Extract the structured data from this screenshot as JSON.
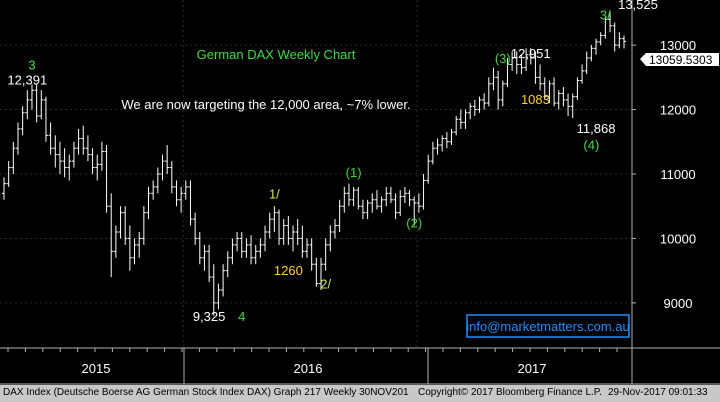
{
  "chart_data": {
    "type": "ohlc",
    "title": "German DAX Weekly Chart",
    "subtitle": "We are now targeting the 12,000 area, ~7% lower.",
    "ylim": [
      8300,
      13700
    ],
    "y_ticks": [
      9000,
      10000,
      11000,
      12000,
      13000
    ],
    "x_labels": [
      "2015",
      "2016",
      "2017"
    ],
    "grid": true,
    "last_price_label": "13059.5303",
    "annotations": [
      {
        "text": "3",
        "color": "#3ddc3d",
        "x": 6,
        "y": 12620
      },
      {
        "text": "12,391",
        "color": "#ffffff",
        "x": 5,
        "y": 12391
      },
      {
        "text": "1/",
        "color": "#d4e84a",
        "x": 58,
        "y": 10620
      },
      {
        "text": "(1)",
        "color": "#3ddc3d",
        "x": 75,
        "y": 10950
      },
      {
        "text": "(2)",
        "color": "#3ddc3d",
        "x": 88,
        "y": 10170
      },
      {
        "text": "1260",
        "color": "#ffd21f",
        "x": 61,
        "y": 9430
      },
      {
        "text": "2/",
        "color": "#d4e84a",
        "x": 69,
        "y": 9220
      },
      {
        "text": "9,325",
        "color": "#ffffff",
        "x": 44,
        "y": 8720
      },
      {
        "text": "4",
        "color": "#3ddc3d",
        "x": 51,
        "y": 8720
      },
      {
        "text": "(3)",
        "color": "#3ddc3d",
        "x": 107,
        "y": 12720
      },
      {
        "text": "12,951",
        "color": "#ffffff",
        "x": 113,
        "y": 12800
      },
      {
        "text": "1083",
        "color": "#ffd21f",
        "x": 114,
        "y": 12090
      },
      {
        "text": "11,868",
        "color": "#ffffff",
        "x": 127,
        "y": 11640
      },
      {
        "text": "(4)",
        "color": "#3ddc3d",
        "x": 126,
        "y": 11380
      },
      {
        "text": "3/",
        "color": "#3ddc3d",
        "x": 129,
        "y": 13400
      },
      {
        "text": "13,525",
        "color": "#ffffff",
        "x": 136,
        "y": 13560
      }
    ],
    "series": [
      {
        "values": [
          {
            "o": 10700,
            "h": 10950,
            "l": 10600,
            "c": 10850
          },
          {
            "o": 10850,
            "h": 11200,
            "l": 10800,
            "c": 11100
          },
          {
            "o": 11100,
            "h": 11500,
            "l": 11000,
            "c": 11400
          },
          {
            "o": 11400,
            "h": 11800,
            "l": 11300,
            "c": 11700
          },
          {
            "o": 11700,
            "h": 12050,
            "l": 11600,
            "c": 11950
          },
          {
            "o": 11950,
            "h": 12300,
            "l": 11850,
            "c": 12150
          },
          {
            "o": 12150,
            "h": 12391,
            "l": 12000,
            "c": 12300
          },
          {
            "o": 12300,
            "h": 12391,
            "l": 11800,
            "c": 11900
          },
          {
            "o": 11900,
            "h": 12300,
            "l": 11850,
            "c": 12150
          },
          {
            "o": 12150,
            "h": 12200,
            "l": 11500,
            "c": 11600
          },
          {
            "o": 11600,
            "h": 11800,
            "l": 11300,
            "c": 11400
          },
          {
            "o": 11400,
            "h": 11600,
            "l": 11100,
            "c": 11300
          },
          {
            "o": 11300,
            "h": 11500,
            "l": 11000,
            "c": 11200
          },
          {
            "o": 11200,
            "h": 11400,
            "l": 10950,
            "c": 11100
          },
          {
            "o": 11100,
            "h": 11300,
            "l": 10900,
            "c": 11200
          },
          {
            "o": 11200,
            "h": 11500,
            "l": 11100,
            "c": 11400
          },
          {
            "o": 11400,
            "h": 11700,
            "l": 11300,
            "c": 11550
          },
          {
            "o": 11550,
            "h": 11750,
            "l": 11300,
            "c": 11400
          },
          {
            "o": 11400,
            "h": 11600,
            "l": 11200,
            "c": 11300
          },
          {
            "o": 11300,
            "h": 11400,
            "l": 11000,
            "c": 11100
          },
          {
            "o": 11100,
            "h": 11300,
            "l": 10900,
            "c": 11150
          },
          {
            "o": 11150,
            "h": 11500,
            "l": 11050,
            "c": 11350
          },
          {
            "o": 11350,
            "h": 11450,
            "l": 10400,
            "c": 10500
          },
          {
            "o": 10500,
            "h": 10700,
            "l": 9400,
            "c": 9800
          },
          {
            "o": 9800,
            "h": 10200,
            "l": 9700,
            "c": 10100
          },
          {
            "o": 10100,
            "h": 10500,
            "l": 10000,
            "c": 10400
          },
          {
            "o": 10400,
            "h": 10500,
            "l": 9900,
            "c": 10000
          },
          {
            "o": 10000,
            "h": 10200,
            "l": 9500,
            "c": 9700
          },
          {
            "o": 9700,
            "h": 10000,
            "l": 9600,
            "c": 9900
          },
          {
            "o": 9900,
            "h": 10100,
            "l": 9700,
            "c": 10000
          },
          {
            "o": 10000,
            "h": 10500,
            "l": 9900,
            "c": 10400
          },
          {
            "o": 10400,
            "h": 10800,
            "l": 10300,
            "c": 10700
          },
          {
            "o": 10700,
            "h": 10900,
            "l": 10600,
            "c": 10800
          },
          {
            "o": 10800,
            "h": 11100,
            "l": 10700,
            "c": 11000
          },
          {
            "o": 11000,
            "h": 11300,
            "l": 10900,
            "c": 11200
          },
          {
            "o": 11200,
            "h": 11450,
            "l": 11000,
            "c": 11100
          },
          {
            "o": 11100,
            "h": 11200,
            "l": 10700,
            "c": 10800
          },
          {
            "o": 10800,
            "h": 10900,
            "l": 10500,
            "c": 10600
          },
          {
            "o": 10600,
            "h": 10800,
            "l": 10400,
            "c": 10700
          },
          {
            "o": 10700,
            "h": 10900,
            "l": 10600,
            "c": 10800
          },
          {
            "o": 10800,
            "h": 10900,
            "l": 10200,
            "c": 10300
          },
          {
            "o": 10300,
            "h": 10400,
            "l": 9900,
            "c": 10000
          },
          {
            "o": 10000,
            "h": 10100,
            "l": 9600,
            "c": 9700
          },
          {
            "o": 9700,
            "h": 9900,
            "l": 9500,
            "c": 9800
          },
          {
            "o": 9800,
            "h": 9900,
            "l": 9325,
            "c": 9400
          },
          {
            "o": 9400,
            "h": 9600,
            "l": 8800,
            "c": 9000
          },
          {
            "o": 9000,
            "h": 9300,
            "l": 8900,
            "c": 9200
          },
          {
            "o": 9200,
            "h": 9600,
            "l": 9100,
            "c": 9500
          },
          {
            "o": 9500,
            "h": 9800,
            "l": 9400,
            "c": 9700
          },
          {
            "o": 9700,
            "h": 10000,
            "l": 9600,
            "c": 9900
          },
          {
            "o": 9900,
            "h": 10100,
            "l": 9800,
            "c": 10000
          },
          {
            "o": 10000,
            "h": 10100,
            "l": 9700,
            "c": 9800
          },
          {
            "o": 9800,
            "h": 10000,
            "l": 9700,
            "c": 9900
          },
          {
            "o": 9900,
            "h": 10050,
            "l": 9600,
            "c": 9700
          },
          {
            "o": 9700,
            "h": 9900,
            "l": 9600,
            "c": 9800
          },
          {
            "o": 9800,
            "h": 10000,
            "l": 9700,
            "c": 9900
          },
          {
            "o": 9900,
            "h": 10200,
            "l": 9800,
            "c": 10100
          },
          {
            "o": 10100,
            "h": 10400,
            "l": 10000,
            "c": 10300
          },
          {
            "o": 10300,
            "h": 10500,
            "l": 10100,
            "c": 10400
          },
          {
            "o": 10400,
            "h": 10450,
            "l": 9900,
            "c": 10000
          },
          {
            "o": 10000,
            "h": 10300,
            "l": 9900,
            "c": 10200
          },
          {
            "o": 10200,
            "h": 10350,
            "l": 9900,
            "c": 10000
          },
          {
            "o": 10000,
            "h": 10200,
            "l": 9800,
            "c": 10100
          },
          {
            "o": 10100,
            "h": 10300,
            "l": 9900,
            "c": 10000
          },
          {
            "o": 10000,
            "h": 10200,
            "l": 9700,
            "c": 9800
          },
          {
            "o": 9800,
            "h": 10000,
            "l": 9700,
            "c": 9900
          },
          {
            "o": 9900,
            "h": 10000,
            "l": 9500,
            "c": 9600
          },
          {
            "o": 9600,
            "h": 9700,
            "l": 9250,
            "c": 9300
          },
          {
            "o": 9300,
            "h": 9700,
            "l": 9200,
            "c": 9600
          },
          {
            "o": 9600,
            "h": 10000,
            "l": 9500,
            "c": 9900
          },
          {
            "o": 9900,
            "h": 10200,
            "l": 9800,
            "c": 10100
          },
          {
            "o": 10100,
            "h": 10300,
            "l": 10000,
            "c": 10200
          },
          {
            "o": 10200,
            "h": 10600,
            "l": 10100,
            "c": 10500
          },
          {
            "o": 10500,
            "h": 10800,
            "l": 10400,
            "c": 10700
          },
          {
            "o": 10700,
            "h": 10850,
            "l": 10500,
            "c": 10600
          },
          {
            "o": 10600,
            "h": 10800,
            "l": 10500,
            "c": 10750
          },
          {
            "o": 10750,
            "h": 10800,
            "l": 10450,
            "c": 10500
          },
          {
            "o": 10500,
            "h": 10600,
            "l": 10300,
            "c": 10400
          },
          {
            "o": 10400,
            "h": 10600,
            "l": 10300,
            "c": 10550
          },
          {
            "o": 10550,
            "h": 10700,
            "l": 10400,
            "c": 10600
          },
          {
            "o": 10600,
            "h": 10750,
            "l": 10450,
            "c": 10500
          },
          {
            "o": 10500,
            "h": 10650,
            "l": 10400,
            "c": 10600
          },
          {
            "o": 10600,
            "h": 10800,
            "l": 10500,
            "c": 10700
          },
          {
            "o": 10700,
            "h": 10800,
            "l": 10550,
            "c": 10600
          },
          {
            "o": 10600,
            "h": 10700,
            "l": 10300,
            "c": 10400
          },
          {
            "o": 10400,
            "h": 10750,
            "l": 10350,
            "c": 10650
          },
          {
            "o": 10650,
            "h": 10800,
            "l": 10550,
            "c": 10700
          },
          {
            "o": 10700,
            "h": 10750,
            "l": 10500,
            "c": 10600
          },
          {
            "o": 10600,
            "h": 10650,
            "l": 10200,
            "c": 10550
          },
          {
            "o": 10550,
            "h": 10700,
            "l": 10400,
            "c": 10500
          },
          {
            "o": 10500,
            "h": 11000,
            "l": 10450,
            "c": 10900
          },
          {
            "o": 10900,
            "h": 11300,
            "l": 10850,
            "c": 11200
          },
          {
            "o": 11200,
            "h": 11500,
            "l": 11150,
            "c": 11400
          },
          {
            "o": 11400,
            "h": 11550,
            "l": 11300,
            "c": 11450
          },
          {
            "o": 11450,
            "h": 11600,
            "l": 11350,
            "c": 11550
          },
          {
            "o": 11550,
            "h": 11650,
            "l": 11400,
            "c": 11500
          },
          {
            "o": 11500,
            "h": 11700,
            "l": 11450,
            "c": 11650
          },
          {
            "o": 11650,
            "h": 11900,
            "l": 11600,
            "c": 11850
          },
          {
            "o": 11850,
            "h": 12000,
            "l": 11700,
            "c": 11800
          },
          {
            "o": 11800,
            "h": 12000,
            "l": 11700,
            "c": 11950
          },
          {
            "o": 11950,
            "h": 12100,
            "l": 11850,
            "c": 12050
          },
          {
            "o": 12050,
            "h": 12150,
            "l": 11900,
            "c": 12000
          },
          {
            "o": 12000,
            "h": 12200,
            "l": 11950,
            "c": 12150
          },
          {
            "o": 12150,
            "h": 12250,
            "l": 12000,
            "c": 12100
          },
          {
            "o": 12100,
            "h": 12500,
            "l": 12050,
            "c": 12400
          },
          {
            "o": 12400,
            "h": 12650,
            "l": 12300,
            "c": 12500
          },
          {
            "o": 12500,
            "h": 12600,
            "l": 12000,
            "c": 12150
          },
          {
            "o": 12150,
            "h": 12450,
            "l": 12050,
            "c": 12400
          },
          {
            "o": 12400,
            "h": 12800,
            "l": 12350,
            "c": 12700
          },
          {
            "o": 12700,
            "h": 12900,
            "l": 12600,
            "c": 12800
          },
          {
            "o": 12800,
            "h": 12900,
            "l": 12550,
            "c": 12700
          },
          {
            "o": 12700,
            "h": 12850,
            "l": 12550,
            "c": 12650
          },
          {
            "o": 12650,
            "h": 12951,
            "l": 12600,
            "c": 12850
          },
          {
            "o": 12850,
            "h": 12951,
            "l": 12700,
            "c": 12800
          },
          {
            "o": 12800,
            "h": 12900,
            "l": 12400,
            "c": 12500
          },
          {
            "o": 12500,
            "h": 12700,
            "l": 12300,
            "c": 12400
          },
          {
            "o": 12400,
            "h": 12500,
            "l": 12150,
            "c": 12200
          },
          {
            "o": 12200,
            "h": 12450,
            "l": 12100,
            "c": 12400
          },
          {
            "o": 12400,
            "h": 12500,
            "l": 12050,
            "c": 12100
          },
          {
            "o": 12100,
            "h": 12300,
            "l": 12000,
            "c": 12250
          },
          {
            "o": 12250,
            "h": 12350,
            "l": 12050,
            "c": 12150
          },
          {
            "o": 12150,
            "h": 12250,
            "l": 11900,
            "c": 12050
          },
          {
            "o": 12050,
            "h": 12250,
            "l": 11868,
            "c": 12200
          },
          {
            "o": 12200,
            "h": 12500,
            "l": 12150,
            "c": 12450
          },
          {
            "o": 12450,
            "h": 12700,
            "l": 12400,
            "c": 12600
          },
          {
            "o": 12600,
            "h": 12900,
            "l": 12550,
            "c": 12800
          },
          {
            "o": 12800,
            "h": 13000,
            "l": 12750,
            "c": 12950
          },
          {
            "o": 12950,
            "h": 13100,
            "l": 12850,
            "c": 13050
          },
          {
            "o": 13050,
            "h": 13200,
            "l": 13000,
            "c": 13150
          },
          {
            "o": 13150,
            "h": 13450,
            "l": 13100,
            "c": 13400
          },
          {
            "o": 13400,
            "h": 13525,
            "l": 13200,
            "c": 13300
          },
          {
            "o": 13300,
            "h": 13350,
            "l": 12900,
            "c": 13000
          },
          {
            "o": 13000,
            "h": 13200,
            "l": 12950,
            "c": 13100
          },
          {
            "o": 13100,
            "h": 13150,
            "l": 12950,
            "c": 13059
          }
        ]
      }
    ],
    "colors": {
      "background": "#000000",
      "bars": "#ffffff",
      "grid": "#2a2a2a",
      "axis_line": "#b0b0b0",
      "title": "#3ddc3d",
      "link_border": "#1f8fff"
    }
  },
  "watermark": "info@marketmatters.com.au",
  "footer": {
    "left": "DAX Index (Deutsche Boerse AG German Stock Index DAX) Graph 217  Weekly 30NOV201",
    "center": "Copyright© 2017 Bloomberg Finance L.P.",
    "right": "29-Nov-2017 09:01:33"
  }
}
